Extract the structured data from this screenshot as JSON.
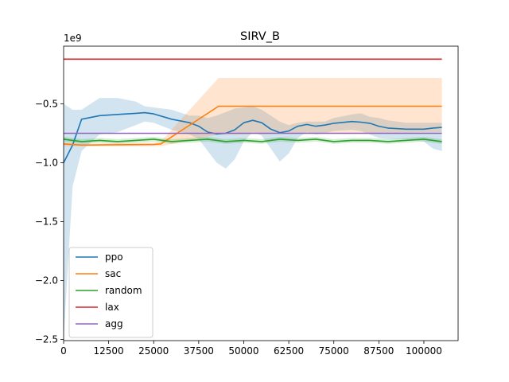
{
  "chart_data": {
    "type": "line",
    "title": "SIRV_B",
    "xlabel": "",
    "ylabel": "",
    "y_offset_label": "1e9",
    "xlim": [
      0,
      109500
    ],
    "ylim": [
      -2.51,
      -0.01
    ],
    "x_ticks": [
      0,
      12500,
      25000,
      37500,
      50000,
      62500,
      75000,
      87500,
      100000
    ],
    "x_tick_labels": [
      "0",
      "12500",
      "25000",
      "37500",
      "50000",
      "62500",
      "75000",
      "87500",
      "100000"
    ],
    "y_ticks": [
      -2.5,
      -2.0,
      -1.5,
      -1.0,
      -0.5
    ],
    "y_tick_labels": [
      "−2.5",
      "−2.0",
      "−1.5",
      "−1.0",
      "−0.5"
    ],
    "legend_position": "lower-left",
    "series": [
      {
        "name": "ppo",
        "color": "#1f77b4",
        "x": [
          0,
          2500,
          5000,
          10000,
          15000,
          20000,
          22500,
          25000,
          30000,
          35000,
          37500,
          40000,
          42500,
          45000,
          47500,
          50000,
          52500,
          55000,
          57500,
          60000,
          62500,
          65000,
          67500,
          70000,
          72500,
          75000,
          80000,
          82500,
          85000,
          87500,
          90000,
          95000,
          100000,
          102500,
          105000
        ],
        "y": [
          -1.0,
          -0.85,
          -0.63,
          -0.6,
          -0.59,
          -0.58,
          -0.575,
          -0.585,
          -0.63,
          -0.66,
          -0.69,
          -0.74,
          -0.755,
          -0.75,
          -0.72,
          -0.66,
          -0.64,
          -0.66,
          -0.715,
          -0.745,
          -0.73,
          -0.69,
          -0.675,
          -0.69,
          -0.68,
          -0.665,
          -0.65,
          -0.655,
          -0.665,
          -0.69,
          -0.705,
          -0.715,
          -0.715,
          -0.705,
          -0.7
        ],
        "band_upper": [
          -0.5,
          -0.55,
          -0.55,
          -0.45,
          -0.45,
          -0.48,
          -0.52,
          -0.53,
          -0.55,
          -0.6,
          -0.6,
          -0.62,
          -0.6,
          -0.57,
          -0.54,
          -0.53,
          -0.52,
          -0.55,
          -0.6,
          -0.65,
          -0.68,
          -0.66,
          -0.65,
          -0.65,
          -0.65,
          -0.62,
          -0.59,
          -0.58,
          -0.61,
          -0.62,
          -0.64,
          -0.66,
          -0.66,
          -0.66,
          -0.66
        ],
        "band_lower": [
          -2.5,
          -1.2,
          -0.9,
          -0.76,
          -0.74,
          -0.68,
          -0.65,
          -0.66,
          -0.72,
          -0.76,
          -0.8,
          -0.9,
          -1.0,
          -1.05,
          -0.97,
          -0.82,
          -0.74,
          -0.77,
          -0.88,
          -0.99,
          -0.92,
          -0.79,
          -0.74,
          -0.76,
          -0.75,
          -0.73,
          -0.72,
          -0.73,
          -0.76,
          -0.79,
          -0.8,
          -0.8,
          -0.82,
          -0.88,
          -0.9
        ]
      },
      {
        "name": "sac",
        "color": "#ff7f0e",
        "x": [
          0,
          5000,
          25000,
          27000,
          43000,
          105000
        ],
        "y": [
          -0.84,
          -0.85,
          -0.845,
          -0.84,
          -0.52,
          -0.52
        ],
        "band_upper": [
          -0.83,
          -0.84,
          -0.83,
          -0.82,
          -0.28,
          -0.28
        ],
        "band_lower": [
          -0.86,
          -0.86,
          -0.86,
          -0.86,
          -0.76,
          -0.74
        ]
      },
      {
        "name": "random",
        "color": "#2ca02c",
        "x": [
          0,
          5000,
          10000,
          15000,
          20000,
          25000,
          30000,
          35000,
          40000,
          45000,
          50000,
          55000,
          60000,
          65000,
          70000,
          75000,
          80000,
          85000,
          90000,
          95000,
          100000,
          105000
        ],
        "y": [
          -0.8,
          -0.82,
          -0.81,
          -0.82,
          -0.81,
          -0.8,
          -0.82,
          -0.81,
          -0.8,
          -0.82,
          -0.81,
          -0.82,
          -0.8,
          -0.81,
          -0.8,
          -0.82,
          -0.81,
          -0.81,
          -0.82,
          -0.81,
          -0.8,
          -0.82
        ],
        "band_upper": [
          -0.78,
          -0.8,
          -0.79,
          -0.8,
          -0.79,
          -0.78,
          -0.8,
          -0.79,
          -0.78,
          -0.8,
          -0.79,
          -0.8,
          -0.78,
          -0.79,
          -0.78,
          -0.8,
          -0.79,
          -0.79,
          -0.8,
          -0.79,
          -0.78,
          -0.8
        ],
        "band_lower": [
          -0.82,
          -0.84,
          -0.83,
          -0.84,
          -0.83,
          -0.82,
          -0.84,
          -0.83,
          -0.82,
          -0.84,
          -0.83,
          -0.84,
          -0.82,
          -0.83,
          -0.82,
          -0.84,
          -0.83,
          -0.83,
          -0.84,
          -0.83,
          -0.82,
          -0.84
        ]
      },
      {
        "name": "lax",
        "color": "#d62728",
        "x": [
          0,
          105000
        ],
        "y": [
          -0.12,
          -0.12
        ]
      },
      {
        "name": "agg",
        "color": "#9467bd",
        "x": [
          0,
          105000
        ],
        "y": [
          -0.75,
          -0.75
        ]
      }
    ]
  }
}
